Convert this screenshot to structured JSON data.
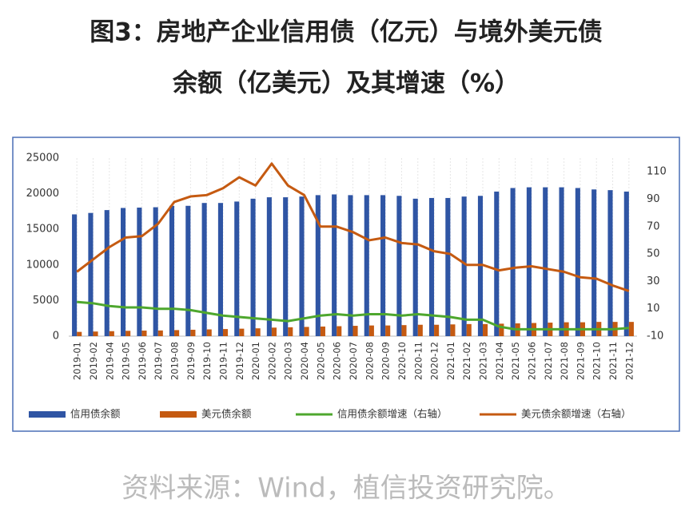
{
  "chart_data": {
    "type": "bar-line",
    "title": [
      "图3：房地产企业信用债（亿元）与境外美元债",
      "余额（亿美元）及其增速（%）"
    ],
    "source": "资料来源：Wind，植信投资研究院。",
    "categories": [
      "2019-01",
      "2019-02",
      "2019-04",
      "2019-05",
      "2019-06",
      "2019-07",
      "2019-08",
      "2019-09",
      "2019-10",
      "2019-11",
      "2019-12",
      "2020-01",
      "2020-02",
      "2020-03",
      "2020-04",
      "2020-05",
      "2020-06",
      "2020-07",
      "2020-08",
      "2020-09",
      "2020-10",
      "2020-11",
      "2020-12",
      "2021-01",
      "2021-02",
      "2021-03",
      "2021-04",
      "2021-05",
      "2021-06",
      "2021-07",
      "2021-08",
      "2021-09",
      "2021-10",
      "2021-11",
      "2021-12"
    ],
    "series": [
      {
        "name": "信用债余额",
        "type": "bar",
        "color": "#2f55a4",
        "values": [
          17100,
          17300,
          17700,
          18000,
          18050,
          18100,
          18300,
          18300,
          18700,
          18700,
          18900,
          19300,
          19500,
          19500,
          19600,
          19800,
          19900,
          19800,
          19800,
          19800,
          19700,
          19300,
          19400,
          19400,
          19600,
          19700,
          20300,
          20800,
          20900,
          20900,
          20900,
          20800,
          20600,
          20500,
          20300
        ]
      },
      {
        "name": "美元债余额",
        "type": "bar",
        "color": "#c55a11",
        "values": [
          600,
          650,
          700,
          750,
          780,
          800,
          850,
          900,
          950,
          1000,
          1050,
          1100,
          1200,
          1250,
          1300,
          1350,
          1400,
          1450,
          1500,
          1500,
          1550,
          1600,
          1600,
          1650,
          1700,
          1700,
          1750,
          1800,
          1850,
          1900,
          1950,
          1950,
          2000,
          2000,
          2000
        ]
      },
      {
        "name": "信用债余额增速（右轴）",
        "type": "line",
        "axis": "y2",
        "color": "#4ea72e",
        "values": [
          15,
          14,
          12,
          11,
          11,
          10,
          10,
          9,
          7,
          5,
          4,
          3,
          2,
          1,
          3,
          5,
          6,
          5,
          6,
          6,
          5,
          6,
          5,
          4,
          2,
          2,
          -3,
          -5,
          -5,
          -5,
          -5,
          -5,
          -5,
          -5,
          -4
        ]
      },
      {
        "name": "美元债余额增速（右轴）",
        "type": "line",
        "axis": "y2",
        "color": "#c55a11",
        "values": [
          37,
          46,
          55,
          62,
          63,
          72,
          88,
          92,
          93,
          98,
          106,
          100,
          116,
          100,
          93,
          70,
          70,
          66,
          60,
          62,
          58,
          57,
          52,
          50,
          42,
          42,
          38,
          40,
          41,
          39,
          37,
          33,
          32,
          27,
          23
        ]
      }
    ],
    "ylim": [
      0,
      25000
    ],
    "yticks": [
      0,
      5000,
      10000,
      15000,
      20000,
      25000
    ],
    "y2lim": [
      -10,
      120
    ],
    "y2ticks": [
      -10,
      10,
      30,
      50,
      70,
      90,
      110
    ],
    "grid": false,
    "legend": "bottom"
  }
}
